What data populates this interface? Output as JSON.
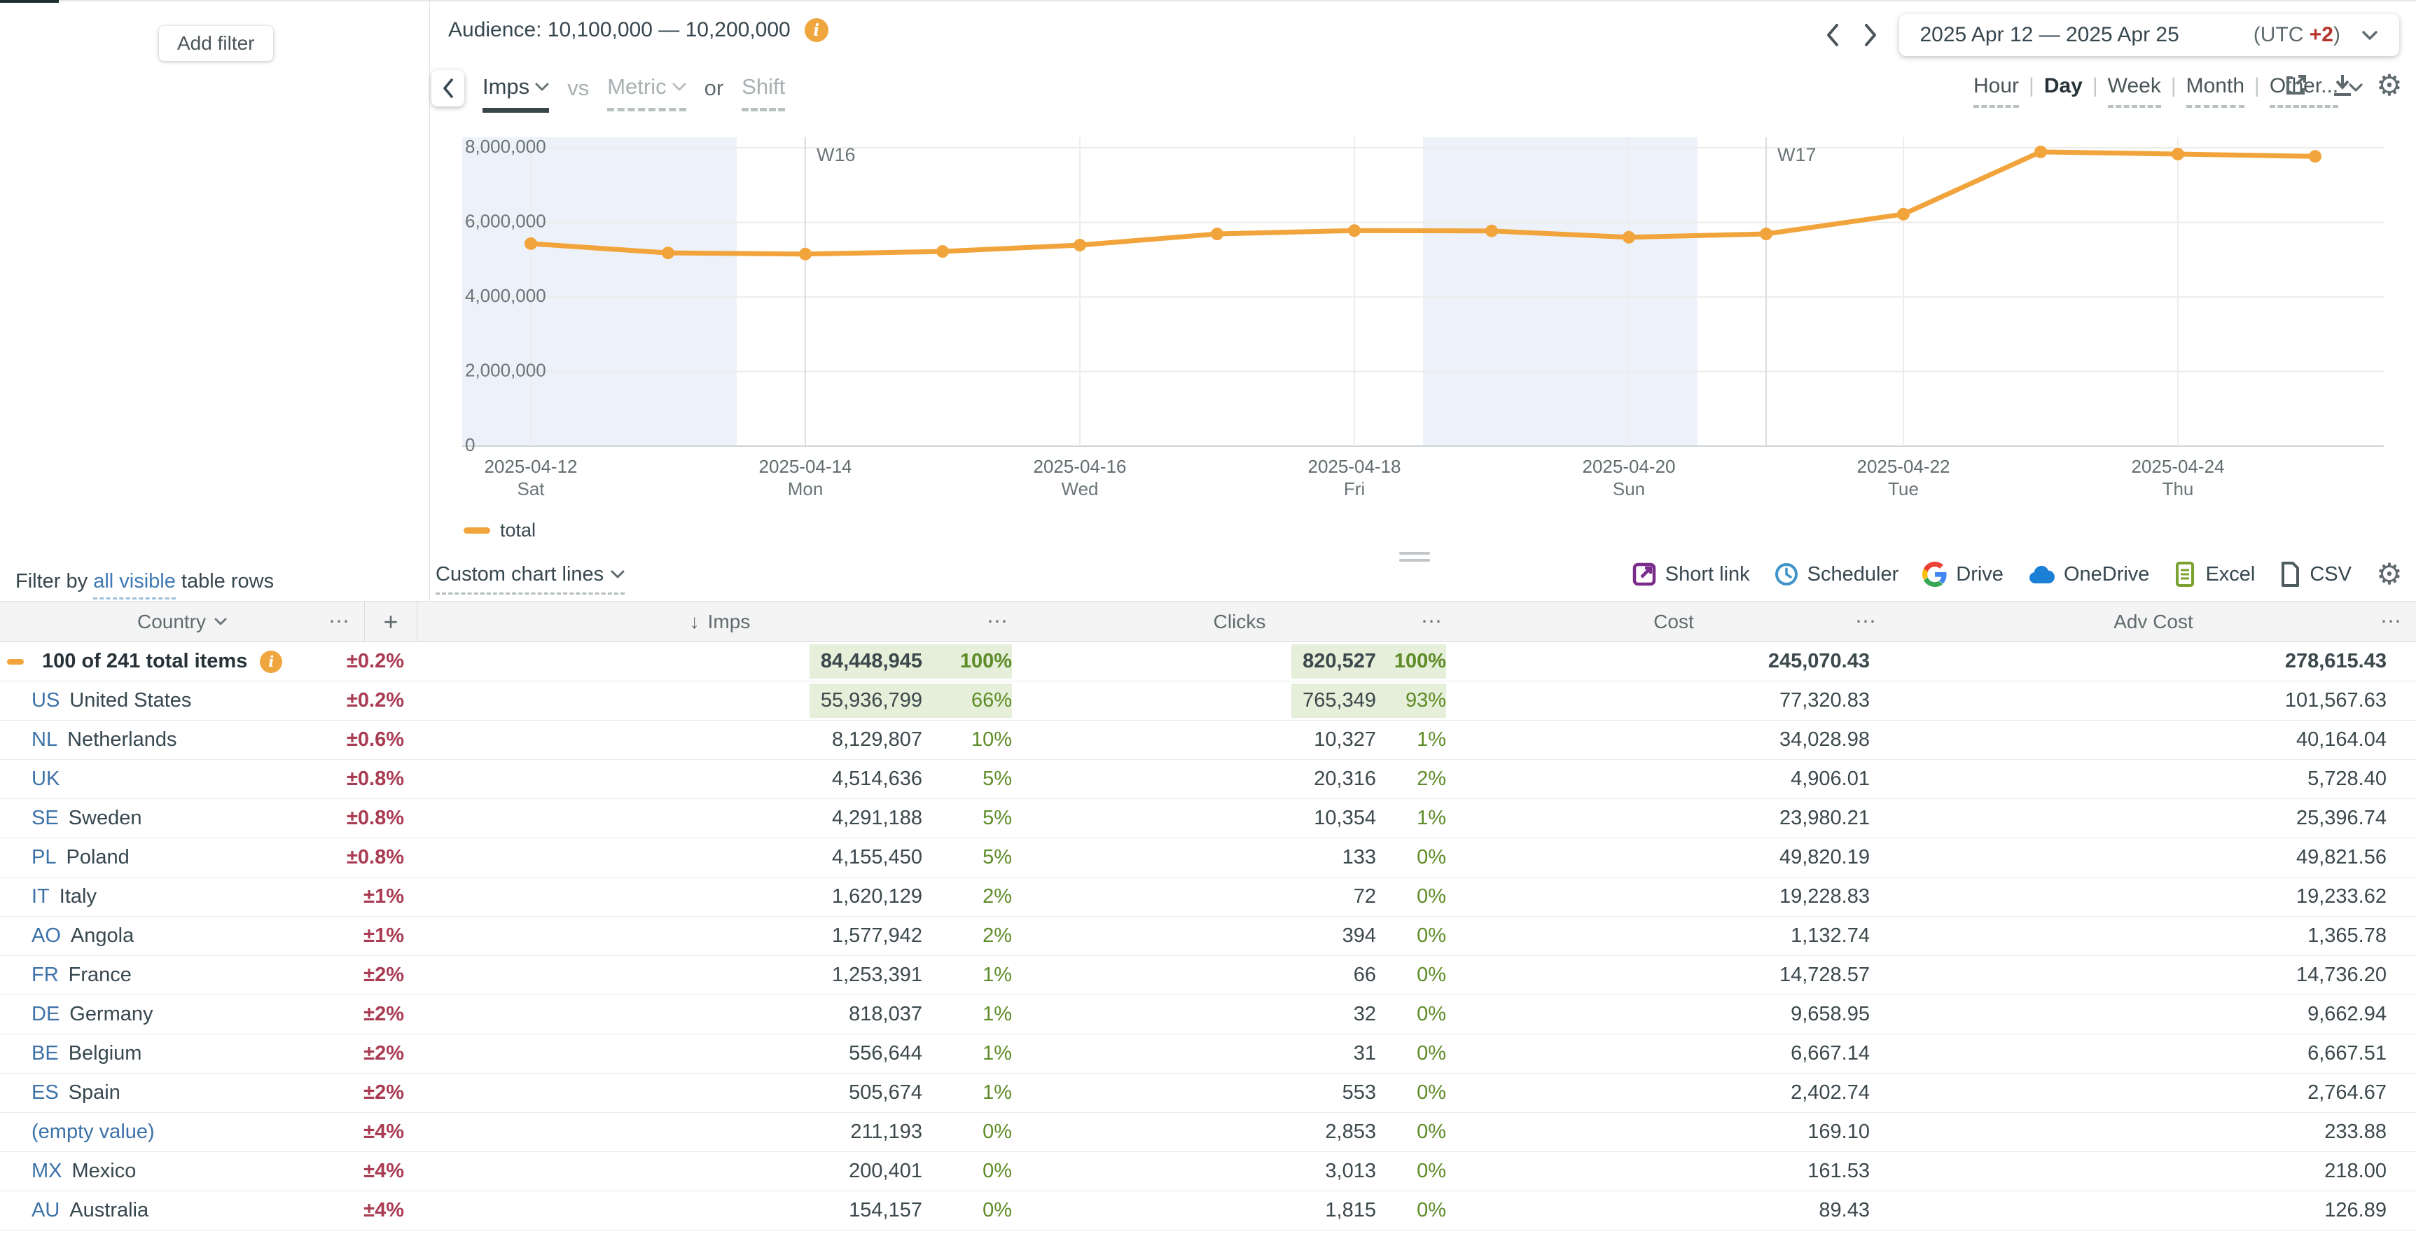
{
  "colors": {
    "accent_orange": "#F2A43C",
    "delta_red": "#A93B52",
    "pct_green": "#5E8C28",
    "highlight_green": "#E5EFD9",
    "link_blue": "#3F79B5",
    "code_blue": "#3C72A8",
    "weekend_band": "#EDF2FA",
    "utc_red": "#B5342C"
  },
  "icons": {
    "info": "i",
    "more": "⋯",
    "plus": "+",
    "sort_desc": "↓",
    "gear": "⚙"
  },
  "left_panel": {
    "add_filter_label": "Add filter",
    "filter_by": {
      "prefix": "Filter by ",
      "link": "all visible",
      "suffix": " table rows"
    }
  },
  "header": {
    "audience_label": "Audience: 10,100,000 — 10,200,000",
    "date_range": "2025 Apr 12 — 2025 Apr 25",
    "utc_prefix": "(UTC ",
    "utc_offset": "+2",
    "utc_suffix": ")",
    "metric_picker": {
      "selected": "Imps",
      "vs_label": "vs",
      "metric_placeholder": "Metric",
      "or_label": "or",
      "shift_label": "Shift"
    },
    "granularity": {
      "options": [
        "Hour",
        "Day",
        "Week",
        "Month",
        "Other..."
      ],
      "selected": "Day",
      "separator": "|"
    }
  },
  "chart_data": {
    "type": "line",
    "title": "",
    "xlabel": "",
    "ylabel": "",
    "ylim": [
      0,
      8000000
    ],
    "grid": true,
    "legend_position": "bottom-left",
    "yticks": [
      0,
      2000000,
      4000000,
      6000000,
      8000000
    ],
    "ytick_labels": [
      "0",
      "2,000,000",
      "4,000,000",
      "6,000,000",
      "8,000,000"
    ],
    "series": [
      {
        "name": "total",
        "color": "#F2A43C",
        "x": [
          "2025-04-12",
          "2025-04-13",
          "2025-04-14",
          "2025-04-15",
          "2025-04-16",
          "2025-04-17",
          "2025-04-18",
          "2025-04-19",
          "2025-04-20",
          "2025-04-21",
          "2025-04-22",
          "2025-04-23",
          "2025-04-24",
          "2025-04-25"
        ],
        "values": [
          5430000,
          5180000,
          5150000,
          5220000,
          5390000,
          5690000,
          5780000,
          5770000,
          5600000,
          5690000,
          6220000,
          7890000,
          7830000,
          7770000
        ]
      }
    ],
    "xtick_labels": [
      {
        "date": "2025-04-12",
        "day": "Sat"
      },
      {
        "date": "2025-04-14",
        "day": "Mon"
      },
      {
        "date": "2025-04-16",
        "day": "Wed"
      },
      {
        "date": "2025-04-18",
        "day": "Fri"
      },
      {
        "date": "2025-04-20",
        "day": "Sun"
      },
      {
        "date": "2025-04-22",
        "day": "Tue"
      },
      {
        "date": "2025-04-24",
        "day": "Thu"
      }
    ],
    "week_markers": [
      {
        "label": "W16",
        "date": "2025-04-14"
      },
      {
        "label": "W17",
        "date": "2025-04-21"
      }
    ],
    "weekend_bands": [
      [
        "2025-04-12",
        "2025-04-13"
      ],
      [
        "2025-04-19",
        "2025-04-20"
      ]
    ]
  },
  "footer": {
    "legend_label": "total",
    "custom_chart_lines": "Custom chart lines",
    "export": [
      {
        "label": "Short link",
        "icon": "short-link-icon"
      },
      {
        "label": "Scheduler",
        "icon": "scheduler-clock-icon"
      },
      {
        "label": "Drive",
        "icon": "google-drive-icon"
      },
      {
        "label": "OneDrive",
        "icon": "onedrive-cloud-icon"
      },
      {
        "label": "Excel",
        "icon": "excel-icon"
      },
      {
        "label": "CSV",
        "icon": "csv-icon"
      }
    ]
  },
  "table": {
    "header": {
      "country": "Country",
      "imps": "Imps",
      "clicks": "Clicks",
      "cost": "Cost",
      "adv_cost": "Adv Cost"
    },
    "sort": {
      "column": "Imps",
      "direction": "desc"
    },
    "total_row": {
      "label": "100 of 241 total items",
      "delta": "±0.2%",
      "imps": "84,448,945",
      "imps_pct": "100%",
      "clicks": "820,527",
      "clicks_pct": "100%",
      "cost": "245,070.43",
      "adv_cost": "278,615.43",
      "highlight": true
    },
    "rows": [
      {
        "code": "US",
        "name": "United States",
        "delta": "±0.2%",
        "imps": "55,936,799",
        "imps_pct": "66%",
        "clicks": "765,349",
        "clicks_pct": "93%",
        "cost": "77,320.83",
        "adv_cost": "101,567.63",
        "highlight": true
      },
      {
        "code": "NL",
        "name": "Netherlands",
        "delta": "±0.6%",
        "imps": "8,129,807",
        "imps_pct": "10%",
        "clicks": "10,327",
        "clicks_pct": "1%",
        "cost": "34,028.98",
        "adv_cost": "40,164.04"
      },
      {
        "code": "UK",
        "name": "",
        "delta": "±0.8%",
        "imps": "4,514,636",
        "imps_pct": "5%",
        "clicks": "20,316",
        "clicks_pct": "2%",
        "cost": "4,906.01",
        "adv_cost": "5,728.40"
      },
      {
        "code": "SE",
        "name": "Sweden",
        "delta": "±0.8%",
        "imps": "4,291,188",
        "imps_pct": "5%",
        "clicks": "10,354",
        "clicks_pct": "1%",
        "cost": "23,980.21",
        "adv_cost": "25,396.74"
      },
      {
        "code": "PL",
        "name": "Poland",
        "delta": "±0.8%",
        "imps": "4,155,450",
        "imps_pct": "5%",
        "clicks": "133",
        "clicks_pct": "0%",
        "cost": "49,820.19",
        "adv_cost": "49,821.56"
      },
      {
        "code": "IT",
        "name": "Italy",
        "delta": "±1%",
        "imps": "1,620,129",
        "imps_pct": "2%",
        "clicks": "72",
        "clicks_pct": "0%",
        "cost": "19,228.83",
        "adv_cost": "19,233.62"
      },
      {
        "code": "AO",
        "name": "Angola",
        "delta": "±1%",
        "imps": "1,577,942",
        "imps_pct": "2%",
        "clicks": "394",
        "clicks_pct": "0%",
        "cost": "1,132.74",
        "adv_cost": "1,365.78"
      },
      {
        "code": "FR",
        "name": "France",
        "delta": "±2%",
        "imps": "1,253,391",
        "imps_pct": "1%",
        "clicks": "66",
        "clicks_pct": "0%",
        "cost": "14,728.57",
        "adv_cost": "14,736.20"
      },
      {
        "code": "DE",
        "name": "Germany",
        "delta": "±2%",
        "imps": "818,037",
        "imps_pct": "1%",
        "clicks": "32",
        "clicks_pct": "0%",
        "cost": "9,658.95",
        "adv_cost": "9,662.94"
      },
      {
        "code": "BE",
        "name": "Belgium",
        "delta": "±2%",
        "imps": "556,644",
        "imps_pct": "1%",
        "clicks": "31",
        "clicks_pct": "0%",
        "cost": "6,667.14",
        "adv_cost": "6,667.51"
      },
      {
        "code": "ES",
        "name": "Spain",
        "delta": "±2%",
        "imps": "505,674",
        "imps_pct": "1%",
        "clicks": "553",
        "clicks_pct": "0%",
        "cost": "2,402.74",
        "adv_cost": "2,764.67"
      },
      {
        "code": "(empty value)",
        "name": "",
        "delta": "±4%",
        "imps": "211,193",
        "imps_pct": "0%",
        "clicks": "2,853",
        "clicks_pct": "0%",
        "cost": "169.10",
        "adv_cost": "233.88",
        "empty": true
      },
      {
        "code": "MX",
        "name": "Mexico",
        "delta": "±4%",
        "imps": "200,401",
        "imps_pct": "0%",
        "clicks": "3,013",
        "clicks_pct": "0%",
        "cost": "161.53",
        "adv_cost": "218.00"
      },
      {
        "code": "AU",
        "name": "Australia",
        "delta": "±4%",
        "imps": "154,157",
        "imps_pct": "0%",
        "clicks": "1,815",
        "clicks_pct": "0%",
        "cost": "89.43",
        "adv_cost": "126.89"
      }
    ]
  }
}
